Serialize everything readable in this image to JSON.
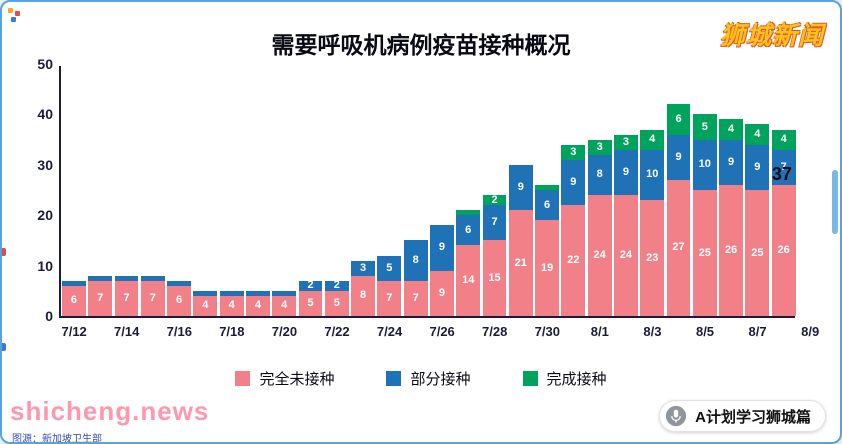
{
  "page": {
    "brand": "狮城新闻",
    "watermark": "shicheng.news",
    "caption": "图源：新加坡卫生部",
    "badge_label": "A计划学习狮城篇"
  },
  "chart_data": {
    "type": "bar",
    "stacked": true,
    "title": "需要呼吸机病例疫苗接种概况",
    "ylim": [
      0,
      50
    ],
    "y_ticks": [
      0,
      10,
      20,
      30,
      40,
      50
    ],
    "x_tick_labels": [
      "7/12",
      "7/14",
      "7/16",
      "7/18",
      "7/20",
      "7/22",
      "7/24",
      "7/26",
      "7/28",
      "7/30",
      "8/1",
      "8/3",
      "8/5",
      "8/7",
      "8/9"
    ],
    "dates": [
      "7/12",
      "7/13",
      "7/14",
      "7/15",
      "7/16",
      "7/17",
      "7/18",
      "7/19",
      "7/20",
      "7/21",
      "7/22",
      "7/23",
      "7/24",
      "7/25",
      "7/26",
      "7/27",
      "7/28",
      "7/29",
      "7/30",
      "7/31",
      "8/1",
      "8/2",
      "8/3",
      "8/4",
      "8/5",
      "8/6",
      "8/7",
      "8/8"
    ],
    "series": [
      {
        "name": "完全未接种",
        "color": "#F28089",
        "values": [
          6,
          7,
          7,
          7,
          6,
          4,
          4,
          4,
          4,
          5,
          5,
          8,
          7,
          7,
          9,
          14,
          15,
          21,
          19,
          22,
          24,
          24,
          23,
          27,
          25,
          26,
          25,
          26
        ]
      },
      {
        "name": "部分接种",
        "color": "#1F72B5",
        "values": [
          1,
          1,
          1,
          1,
          1,
          1,
          1,
          1,
          1,
          2,
          2,
          3,
          5,
          8,
          9,
          6,
          7,
          9,
          6,
          9,
          8,
          9,
          10,
          9,
          10,
          9,
          9,
          7
        ]
      },
      {
        "name": "完成接种",
        "color": "#00A35C",
        "values": [
          0,
          0,
          0,
          0,
          0,
          0,
          0,
          0,
          0,
          0,
          0,
          0,
          0,
          0,
          0,
          1,
          2,
          0,
          1,
          3,
          3,
          3,
          4,
          6,
          5,
          4,
          4,
          4
        ]
      }
    ],
    "annotation": {
      "text": "37",
      "date": "8/8",
      "value": 37
    },
    "legend_position": "bottom",
    "grid": false
  }
}
